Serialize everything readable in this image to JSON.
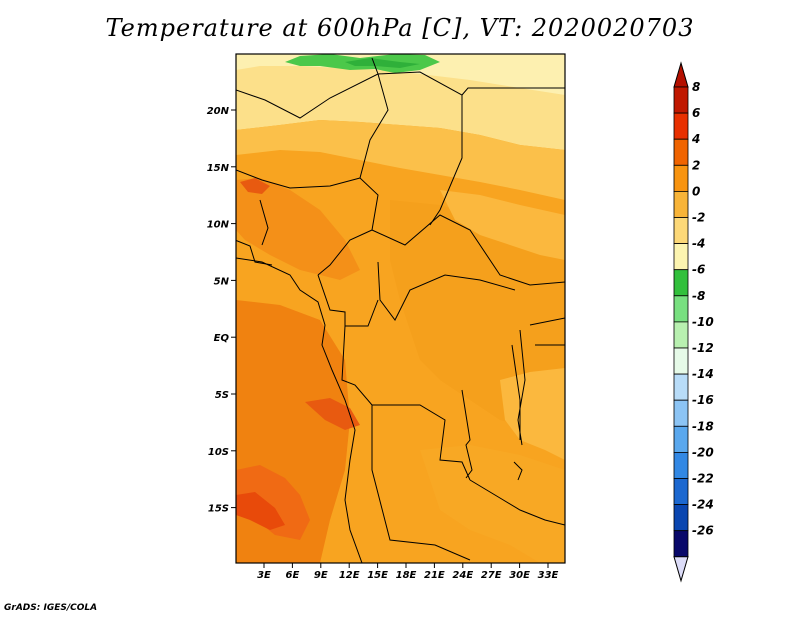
{
  "title": "Temperature at 600hPa [C], VT: 2020020703",
  "credit": "GrADS: IGES/COLA",
  "lat_ticks": [
    "20N",
    "15N",
    "10N",
    "5N",
    "EQ",
    "5S",
    "10S",
    "15S"
  ],
  "lon_ticks": [
    "3E",
    "6E",
    "9E",
    "12E",
    "15E",
    "18E",
    "21E",
    "24E",
    "27E",
    "30E",
    "33E"
  ],
  "colorbar": {
    "labels": [
      "8",
      "6",
      "4",
      "2",
      "0",
      "-2",
      "-4",
      "-6",
      "-8",
      "-10",
      "-12",
      "-14",
      "-16",
      "-18",
      "-20",
      "-22",
      "-24",
      "-26"
    ],
    "colors": [
      "#c01800",
      "#e83000",
      "#f06400",
      "#f89410",
      "#f8b438",
      "#fcd878",
      "#fcf4b0",
      "#32c03c",
      "#78e080",
      "#b8f0b0",
      "#e6fae8",
      "#b8dcf8",
      "#8cc4f4",
      "#5aa8ee",
      "#3288e4",
      "#1c68d0",
      "#0a46b0",
      "#08086a"
    ]
  }
}
